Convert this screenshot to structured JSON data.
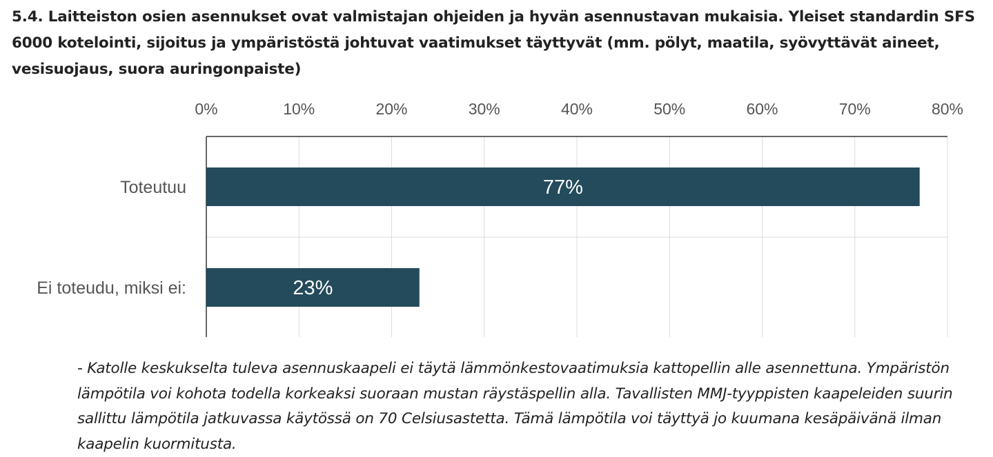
{
  "question": {
    "title": "5.4. Laitteiston osien asennukset ovat valmistajan ohjeiden ja hyvän asennustavan mukaisia. Yleiset standardin SFS 6000 kotelointi, sijoitus ja ympäristöstä johtuvat vaatimukset täyttyvät (mm. pölyt, maatila, syövyttävät aineet, vesisuojaus, suora auringonpaiste)"
  },
  "comment": {
    "text": "- Katolle keskukselta tuleva asennuskaapeli ei täytä lämmönkestovaatimuksia kattopellin alle asennettuna. Ympäristön lämpötila voi kohota todella korkeaksi suoraan mustan räystäspellin alla. Tavallisten MMJ-tyyppisten kaapeleiden suurin sallittu lämpötila jatkuvassa käytössä on 70 Celsiusastetta. Tämä lämpötila voi täyttyä jo kuumana kesäpäivänä ilman kaapelin kuormitusta."
  },
  "chart_data": {
    "type": "bar",
    "orientation": "horizontal",
    "categories": [
      "Toteutuu",
      "Ei toteudu, miksi ei:"
    ],
    "values": [
      77,
      23
    ],
    "data_labels": [
      "77%",
      "23%"
    ],
    "x_ticks": [
      "0%",
      "10%",
      "20%",
      "30%",
      "40%",
      "50%",
      "60%",
      "70%",
      "80%"
    ],
    "xlim": [
      0,
      80
    ],
    "x_axis_position": "top",
    "grid": true,
    "bar_color": "#234b5b",
    "gridline_color": "#dcdcdc",
    "axis_color": "#333333",
    "tick_label_color": "#555555",
    "data_label_color": "#ffffff"
  }
}
